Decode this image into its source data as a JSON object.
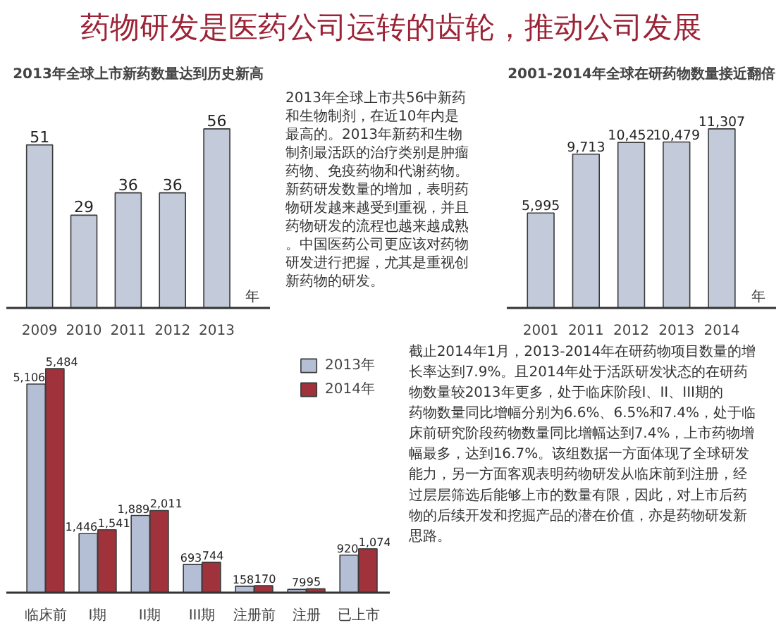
{
  "chart_data": [
    {
      "type": "other",
      "title": "药物研发是医药公司运转的齿轮，推动公司发展"
    },
    {
      "type": "bar",
      "title": "2013年全球上市新药数量达到历史新高",
      "xlabel": "年",
      "categories": [
        "2009",
        "2010",
        "2011",
        "2012",
        "2013"
      ],
      "values": [
        51,
        29,
        36,
        36,
        56
      ],
      "color": "#c3cad9",
      "data_labels": true,
      "tick_labels": "x"
    },
    {
      "type": "other",
      "annotations": [
        "2013年全球上市共56中新药和生物制剂，在近10年内是最高的。2013年新药和生物制剂最活跃的治疗类别是肿瘤药物、免疫药物和代谢药物。新药研发数量的增加，表明药物研发越来越受到重视，并且药物研发的流程也越来越成熟。中国医药公司更应该对药物研发进行把握，尤其是重视创新药物的研发。"
      ]
    },
    {
      "type": "bar",
      "title": "2001-2014年全球在研药物数量接近翻倍",
      "xlabel": "年",
      "categories": [
        "2001",
        "2011",
        "2012",
        "2013",
        "2014"
      ],
      "values": [
        5995,
        9713,
        10452,
        10479,
        11307
      ],
      "value_labels": [
        "5,995",
        "9,713",
        "10,452",
        "10,479",
        "11,307"
      ],
      "color": "#c3cad9",
      "tick_labels": "x"
    },
    {
      "type": "bar",
      "categories": [
        "临床前",
        "I期",
        "II期",
        "III期",
        "注册前",
        "注册",
        "已上市"
      ],
      "legend": "top right",
      "tick_labels": "x",
      "series": [
        {
          "name": "2013年",
          "color": "#b4bfd6",
          "values": [
            5106,
            1446,
            1889,
            693,
            158,
            79,
            920
          ],
          "value_labels": [
            "5,106",
            "1,446",
            "1,889",
            "693",
            "158",
            "79",
            "920"
          ]
        },
        {
          "name": "2014年",
          "color": "#a0323c",
          "values": [
            5484,
            1541,
            2011,
            744,
            170,
            95,
            1074
          ],
          "value_labels": [
            "5,484",
            "1,541",
            "2,011",
            "744",
            "170",
            "95",
            "1,074"
          ]
        }
      ]
    },
    {
      "type": "other",
      "annotations": [
        "截止2014年1月，2013-2014年在研药物项目数量的增长率达到7.9%。且2014年处于活跃研发状态的在研药物数量较2013年更多，处于临床阶段I、II、III期的药物数量同比增幅分别为6.6%、6.5%和7.4%，处于临床前研究阶段药物数量同比增幅达到7.4%，上市药物增幅最多，达到16.7%。该组数据一方面体现了全球研发能力，另一方面客观表明药物研发从临床前到注册，经过层层筛选后能够上市的数量有限，因此，对上市后药物的后续开发和挖掘产品的潜在价值，亦是药物研发新思路。"
      ]
    }
  ]
}
